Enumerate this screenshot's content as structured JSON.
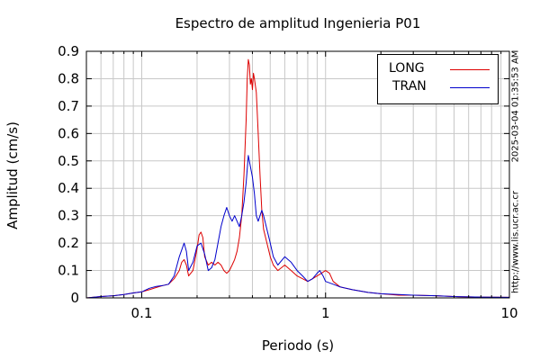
{
  "chart_data": {
    "type": "line",
    "title": "Espectro de amplitud Ingenieria P01",
    "xlabel": "Periodo (s)",
    "ylabel": "Amplitud (cm/s)",
    "x_scale": "log",
    "xlim": [
      0.05,
      10
    ],
    "ylim": [
      0,
      0.9
    ],
    "xticks": [
      0.1,
      1,
      10
    ],
    "xtick_labels": [
      "0.1",
      "1",
      "10"
    ],
    "yticks": [
      0,
      0.1,
      0.2,
      0.3,
      0.4,
      0.5,
      0.6,
      0.7,
      0.8,
      0.9
    ],
    "ytick_labels": [
      "0",
      "0.1",
      "0.2",
      "0.3",
      "0.4",
      "0.5",
      "0.6",
      "0.7",
      "0.8",
      "0.9"
    ],
    "grid": true,
    "legend_position": "top-right",
    "series": [
      {
        "name": "LONG",
        "color": "#dd0000",
        "points": [
          [
            0.05,
            0.0
          ],
          [
            0.06,
            0.005
          ],
          [
            0.07,
            0.008
          ],
          [
            0.08,
            0.012
          ],
          [
            0.09,
            0.018
          ],
          [
            0.1,
            0.022
          ],
          [
            0.11,
            0.03
          ],
          [
            0.12,
            0.038
          ],
          [
            0.13,
            0.045
          ],
          [
            0.14,
            0.05
          ],
          [
            0.15,
            0.07
          ],
          [
            0.16,
            0.1
          ],
          [
            0.165,
            0.13
          ],
          [
            0.17,
            0.14
          ],
          [
            0.175,
            0.12
          ],
          [
            0.18,
            0.08
          ],
          [
            0.19,
            0.1
          ],
          [
            0.2,
            0.18
          ],
          [
            0.205,
            0.23
          ],
          [
            0.21,
            0.24
          ],
          [
            0.215,
            0.22
          ],
          [
            0.22,
            0.15
          ],
          [
            0.23,
            0.12
          ],
          [
            0.24,
            0.13
          ],
          [
            0.25,
            0.12
          ],
          [
            0.26,
            0.13
          ],
          [
            0.27,
            0.12
          ],
          [
            0.28,
            0.1
          ],
          [
            0.29,
            0.09
          ],
          [
            0.3,
            0.1
          ],
          [
            0.31,
            0.12
          ],
          [
            0.32,
            0.14
          ],
          [
            0.33,
            0.17
          ],
          [
            0.34,
            0.22
          ],
          [
            0.35,
            0.3
          ],
          [
            0.36,
            0.45
          ],
          [
            0.37,
            0.65
          ],
          [
            0.375,
            0.8
          ],
          [
            0.38,
            0.87
          ],
          [
            0.385,
            0.85
          ],
          [
            0.39,
            0.78
          ],
          [
            0.395,
            0.8
          ],
          [
            0.4,
            0.76
          ],
          [
            0.405,
            0.82
          ],
          [
            0.41,
            0.8
          ],
          [
            0.42,
            0.75
          ],
          [
            0.43,
            0.6
          ],
          [
            0.44,
            0.45
          ],
          [
            0.45,
            0.32
          ],
          [
            0.46,
            0.25
          ],
          [
            0.48,
            0.2
          ],
          [
            0.5,
            0.15
          ],
          [
            0.52,
            0.12
          ],
          [
            0.55,
            0.1
          ],
          [
            0.6,
            0.12
          ],
          [
            0.65,
            0.1
          ],
          [
            0.7,
            0.08
          ],
          [
            0.75,
            0.07
          ],
          [
            0.8,
            0.06
          ],
          [
            0.85,
            0.07
          ],
          [
            0.9,
            0.08
          ],
          [
            0.95,
            0.09
          ],
          [
            1.0,
            0.1
          ],
          [
            1.05,
            0.09
          ],
          [
            1.1,
            0.06
          ],
          [
            1.2,
            0.04
          ],
          [
            1.4,
            0.03
          ],
          [
            1.7,
            0.02
          ],
          [
            2.0,
            0.015
          ],
          [
            2.5,
            0.01
          ],
          [
            3.0,
            0.01
          ],
          [
            4.0,
            0.008
          ],
          [
            5.0,
            0.005
          ],
          [
            7.0,
            0.003
          ],
          [
            10.0,
            0.002
          ]
        ]
      },
      {
        "name": "TRAN",
        "color": "#0000cc",
        "points": [
          [
            0.05,
            0.0
          ],
          [
            0.06,
            0.005
          ],
          [
            0.07,
            0.008
          ],
          [
            0.08,
            0.012
          ],
          [
            0.09,
            0.018
          ],
          [
            0.1,
            0.022
          ],
          [
            0.11,
            0.035
          ],
          [
            0.12,
            0.042
          ],
          [
            0.13,
            0.045
          ],
          [
            0.14,
            0.05
          ],
          [
            0.15,
            0.08
          ],
          [
            0.16,
            0.15
          ],
          [
            0.17,
            0.2
          ],
          [
            0.175,
            0.17
          ],
          [
            0.18,
            0.1
          ],
          [
            0.19,
            0.13
          ],
          [
            0.2,
            0.19
          ],
          [
            0.21,
            0.2
          ],
          [
            0.22,
            0.16
          ],
          [
            0.23,
            0.1
          ],
          [
            0.24,
            0.11
          ],
          [
            0.25,
            0.14
          ],
          [
            0.26,
            0.2
          ],
          [
            0.27,
            0.26
          ],
          [
            0.28,
            0.3
          ],
          [
            0.29,
            0.33
          ],
          [
            0.3,
            0.3
          ],
          [
            0.31,
            0.28
          ],
          [
            0.32,
            0.3
          ],
          [
            0.33,
            0.28
          ],
          [
            0.34,
            0.26
          ],
          [
            0.35,
            0.3
          ],
          [
            0.36,
            0.35
          ],
          [
            0.37,
            0.42
          ],
          [
            0.38,
            0.52
          ],
          [
            0.39,
            0.48
          ],
          [
            0.4,
            0.44
          ],
          [
            0.41,
            0.38
          ],
          [
            0.42,
            0.3
          ],
          [
            0.43,
            0.28
          ],
          [
            0.44,
            0.3
          ],
          [
            0.45,
            0.32
          ],
          [
            0.46,
            0.3
          ],
          [
            0.48,
            0.25
          ],
          [
            0.5,
            0.2
          ],
          [
            0.52,
            0.15
          ],
          [
            0.55,
            0.12
          ],
          [
            0.6,
            0.15
          ],
          [
            0.65,
            0.13
          ],
          [
            0.7,
            0.1
          ],
          [
            0.75,
            0.08
          ],
          [
            0.8,
            0.06
          ],
          [
            0.85,
            0.07
          ],
          [
            0.9,
            0.09
          ],
          [
            0.93,
            0.1
          ],
          [
            0.97,
            0.08
          ],
          [
            1.0,
            0.06
          ],
          [
            1.1,
            0.05
          ],
          [
            1.2,
            0.04
          ],
          [
            1.4,
            0.03
          ],
          [
            1.7,
            0.02
          ],
          [
            2.0,
            0.015
          ],
          [
            2.5,
            0.012
          ],
          [
            3.0,
            0.01
          ],
          [
            4.0,
            0.008
          ],
          [
            5.0,
            0.005
          ],
          [
            7.0,
            0.003
          ],
          [
            10.0,
            0.002
          ]
        ]
      }
    ]
  },
  "side": {
    "timestamp": "2025-03-04 01:35:53 AM",
    "url": "http://www.lis.ucr.ac.cr"
  }
}
